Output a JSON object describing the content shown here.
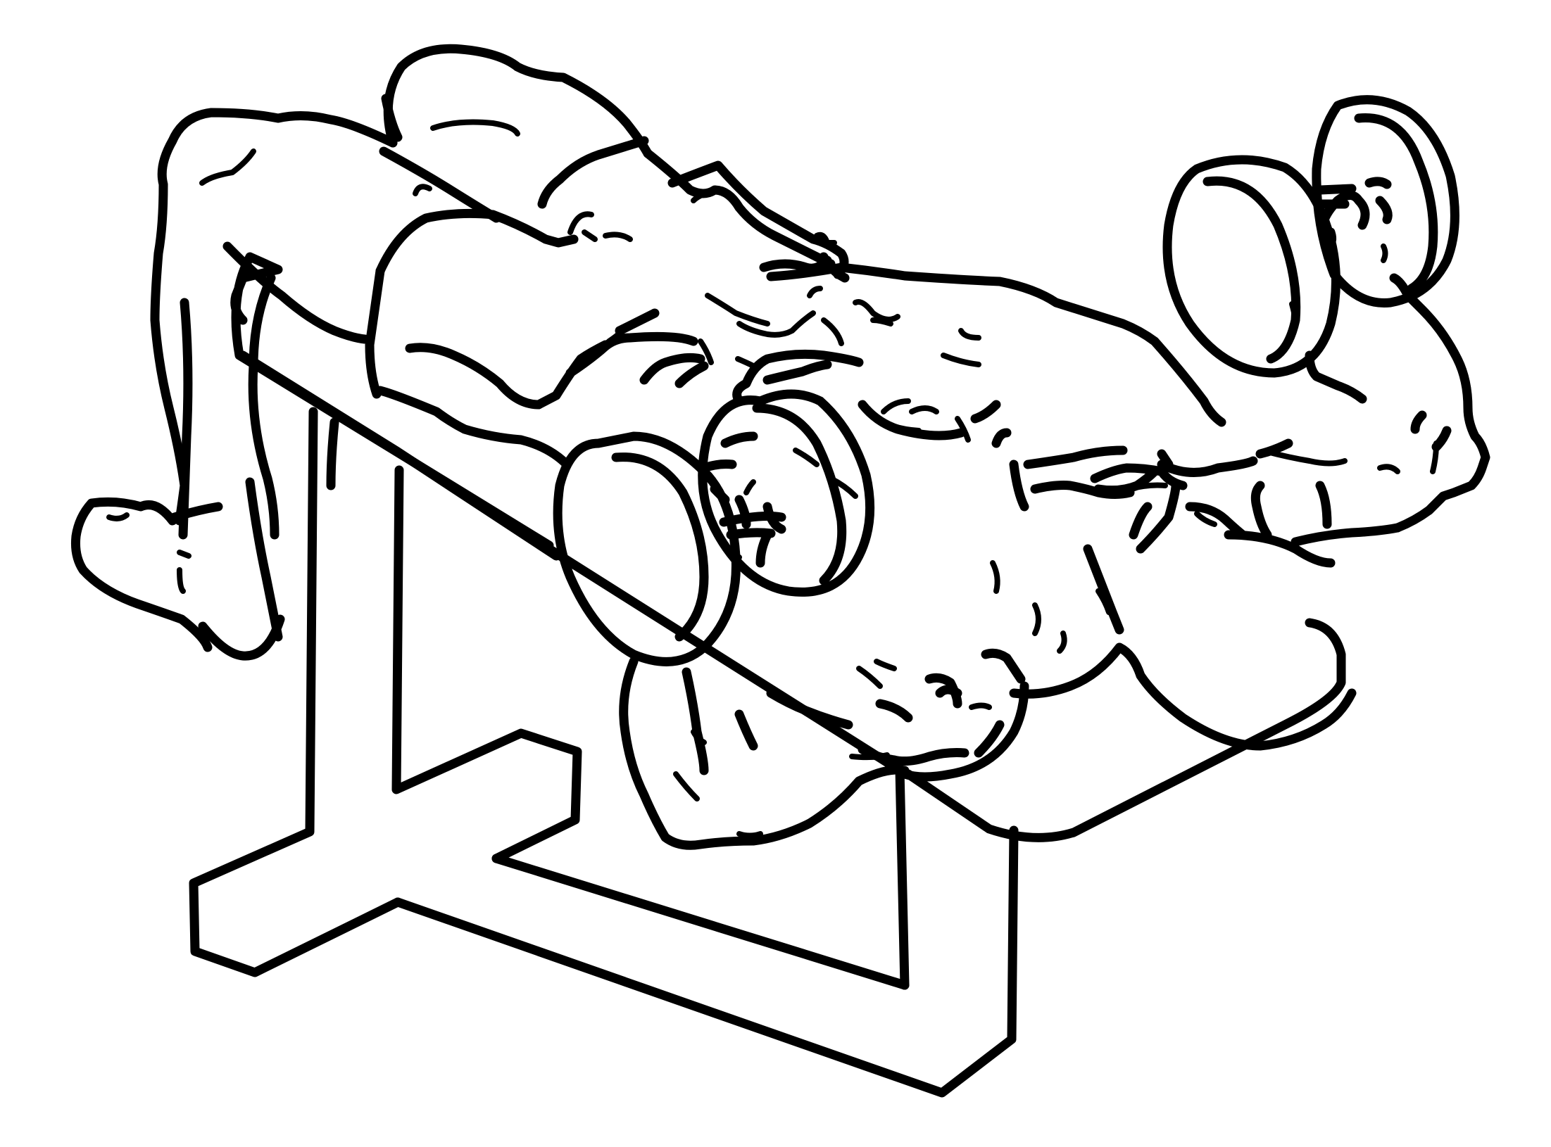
{
  "illustration": {
    "figure": "person-lying-on-decline-bench",
    "equipment": [
      "decline-bench",
      "dumbbell-left",
      "dumbbell-right"
    ],
    "line_color": "#000000",
    "background_color": "#ffffff"
  }
}
